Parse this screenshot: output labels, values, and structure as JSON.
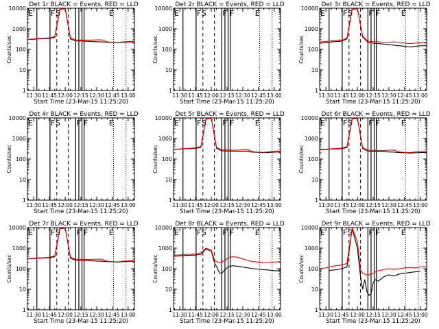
{
  "chart_data": {
    "type": "line",
    "y_scale": "log",
    "ylim": [
      1,
      10000
    ],
    "x_tick_labels": [
      "11:30",
      "11:45",
      "12:00",
      "12:15",
      "12:30",
      "12:45",
      "13:00"
    ],
    "x_tick_minutes": [
      0,
      15,
      30,
      45,
      60,
      75,
      90
    ],
    "xlim_minutes": [
      -6,
      96
    ],
    "y_tick_labels": [
      "1",
      "10",
      "100",
      "1000",
      "10000"
    ],
    "ylabel": "Counts/sec",
    "xlabel": "Start Time (23-Mar-15 11:25:20)",
    "colors": {
      "events": "#000000",
      "lld": "#ff0000"
    },
    "panels": [
      {
        "title": "Det 1r BLACK = Events, RED = LLD",
        "flags": [
          {
            "text": "E",
            "t": -6
          },
          {
            "text": "F",
            "t": 15.5
          },
          {
            "text": "S",
            "t": 20
          },
          {
            "text": "E",
            "t": 71
          }
        ],
        "solid_lines": [
          3,
          15.5,
          40,
          43,
          46,
          48
        ],
        "dashed_lines": [
          22,
          33
        ],
        "dotted_lines": [
          76,
          88
        ],
        "events": {
          "t": [
            -6,
            0,
            3,
            6,
            10,
            15,
            20,
            25,
            30,
            35,
            40,
            45,
            50,
            55,
            60,
            65,
            70,
            75,
            80,
            85,
            90,
            96
          ],
          "y": [
            300,
            310,
            320,
            330,
            330,
            340,
            380,
            9000,
            9500,
            320,
            260,
            255,
            250,
            240,
            235,
            230,
            220,
            215,
            210,
            220,
            225,
            230
          ]
        },
        "lld": {
          "t": [
            -6,
            0,
            3,
            6,
            10,
            15,
            20,
            25,
            30,
            35,
            40,
            45,
            50,
            55,
            60,
            65,
            70,
            75,
            80,
            85,
            90,
            96
          ],
          "y": [
            310,
            320,
            330,
            340,
            345,
            360,
            420,
            10000,
            10000,
            360,
            290,
            285,
            280,
            280,
            290,
            290,
            230,
            220,
            215,
            230,
            240,
            250
          ]
        }
      },
      {
        "title": "Det 2r BLACK = Events, RED = LLD",
        "flags": [
          {
            "text": "E",
            "t": -6
          },
          {
            "text": "F",
            "t": 15.5
          },
          {
            "text": "S",
            "t": 20
          },
          {
            "text": "F",
            "t": 40
          },
          {
            "text": "F",
            "t": 47
          },
          {
            "text": "E",
            "t": 71
          }
        ],
        "solid_lines": [
          3,
          15.5,
          40,
          43,
          46,
          48
        ],
        "dashed_lines": [
          22,
          33
        ],
        "dotted_lines": [
          76,
          88
        ],
        "events": {
          "t": [],
          "y": []
        },
        "lld": {
          "t": [],
          "y": []
        }
      },
      {
        "title": "Det 3r BLACK = Events, RED = LLD",
        "flags": [
          {
            "text": "E",
            "t": -6
          },
          {
            "text": "F",
            "t": 15.5
          },
          {
            "text": "S",
            "t": 20
          },
          {
            "text": "F",
            "t": 40
          },
          {
            "text": "F",
            "t": 47
          },
          {
            "text": "E",
            "t": 71
          }
        ],
        "solid_lines": [
          3,
          15.5,
          40,
          43,
          46,
          48
        ],
        "dashed_lines": [
          22,
          33
        ],
        "dotted_lines": [
          76,
          88
        ],
        "events": {
          "t": [
            -6,
            0,
            3,
            6,
            10,
            15,
            20,
            25,
            30,
            35,
            40,
            45,
            50,
            55,
            60,
            65,
            70,
            75,
            80,
            85,
            90,
            96
          ],
          "y": [
            200,
            210,
            220,
            230,
            240,
            250,
            320,
            9000,
            9500,
            400,
            220,
            200,
            190,
            180,
            170,
            160,
            150,
            140,
            130,
            140,
            150,
            150
          ]
        },
        "lld": {
          "t": [
            -6,
            0,
            3,
            6,
            10,
            15,
            20,
            25,
            30,
            35,
            40,
            45,
            50,
            55,
            60,
            65,
            70,
            75,
            80,
            85,
            90,
            96
          ],
          "y": [
            230,
            240,
            250,
            260,
            270,
            280,
            360,
            10000,
            10000,
            440,
            250,
            240,
            230,
            220,
            220,
            230,
            220,
            200,
            190,
            200,
            210,
            220
          ]
        }
      },
      {
        "title": "Det 4r BLACK = Events, RED = LLD",
        "flags": [
          {
            "text": "E",
            "t": -6
          },
          {
            "text": "F",
            "t": 15.5
          },
          {
            "text": "S",
            "t": 20
          },
          {
            "text": "F",
            "t": 40
          },
          {
            "text": "F",
            "t": 47
          },
          {
            "text": "E",
            "t": 71
          }
        ],
        "solid_lines": [
          3,
          15.5,
          40,
          43,
          46,
          48
        ],
        "dashed_lines": [
          22,
          33
        ],
        "dotted_lines": [
          76,
          88
        ],
        "events": {
          "t": [],
          "y": []
        },
        "lld": {
          "t": [],
          "y": []
        }
      },
      {
        "title": "Det 5r BLACK = Events, RED = LLD",
        "flags": [
          {
            "text": "E",
            "t": -6
          },
          {
            "text": "F",
            "t": 15.5
          },
          {
            "text": "S",
            "t": 20
          },
          {
            "text": "F",
            "t": 40
          },
          {
            "text": "F",
            "t": 47
          },
          {
            "text": "E",
            "t": 71
          }
        ],
        "solid_lines": [
          3,
          15.5,
          40,
          43,
          46,
          48
        ],
        "dashed_lines": [
          22,
          33
        ],
        "dotted_lines": [
          76,
          88
        ],
        "events": {
          "t": [
            -6,
            0,
            3,
            6,
            10,
            15,
            20,
            25,
            30,
            35,
            40,
            45,
            50,
            55,
            60,
            65,
            70,
            75,
            80,
            85,
            90,
            96
          ],
          "y": [
            290,
            300,
            310,
            320,
            320,
            330,
            370,
            9000,
            9500,
            330,
            250,
            245,
            240,
            235,
            230,
            225,
            215,
            210,
            205,
            210,
            215,
            220
          ]
        },
        "lld": {
          "t": [
            -6,
            0,
            3,
            6,
            10,
            15,
            20,
            25,
            30,
            35,
            40,
            45,
            50,
            55,
            60,
            65,
            70,
            75,
            80,
            85,
            90,
            96
          ],
          "y": [
            300,
            310,
            320,
            330,
            335,
            350,
            410,
            10000,
            10000,
            370,
            280,
            275,
            270,
            270,
            280,
            280,
            225,
            215,
            210,
            225,
            235,
            245
          ]
        }
      },
      {
        "title": "Det 6r BLACK = Events, RED = LLD",
        "flags": [
          {
            "text": "E",
            "t": -6
          },
          {
            "text": "F",
            "t": 15.5
          },
          {
            "text": "S",
            "t": 20
          },
          {
            "text": "F",
            "t": 40
          },
          {
            "text": "F",
            "t": 47
          },
          {
            "text": "E",
            "t": 71
          }
        ],
        "solid_lines": [
          3,
          15.5,
          40,
          43,
          46,
          48
        ],
        "dashed_lines": [
          22,
          33
        ],
        "dotted_lines": [
          76,
          88
        ],
        "events": {
          "t": [
            -6,
            0,
            3,
            6,
            10,
            15,
            20,
            25,
            30,
            35,
            40,
            45,
            50,
            55,
            60,
            65,
            70,
            75,
            80,
            85,
            90,
            96
          ],
          "y": [
            280,
            290,
            300,
            310,
            310,
            320,
            360,
            9000,
            9500,
            320,
            240,
            235,
            230,
            225,
            220,
            215,
            205,
            200,
            195,
            200,
            205,
            210
          ]
        },
        "lld": {
          "t": [
            -6,
            0,
            3,
            6,
            10,
            15,
            20,
            25,
            30,
            35,
            40,
            45,
            50,
            55,
            60,
            65,
            70,
            75,
            80,
            85,
            90,
            96
          ],
          "y": [
            290,
            300,
            310,
            320,
            325,
            340,
            400,
            10000,
            10000,
            360,
            270,
            265,
            260,
            260,
            270,
            270,
            220,
            210,
            205,
            220,
            230,
            240
          ]
        }
      },
      {
        "title": "Det 7r BLACK = Events, RED = LLD",
        "flags": [
          {
            "text": "E",
            "t": -6
          },
          {
            "text": "F",
            "t": 15.5
          },
          {
            "text": "S",
            "t": 20
          },
          {
            "text": "F",
            "t": 40
          },
          {
            "text": "F",
            "t": 47
          },
          {
            "text": "E",
            "t": 71
          }
        ],
        "solid_lines": [
          3,
          15.5,
          40,
          43,
          46,
          48
        ],
        "dashed_lines": [
          22,
          33
        ],
        "dotted_lines": [
          76,
          88
        ],
        "events": {
          "t": [
            -6,
            0,
            3,
            6,
            10,
            15,
            20,
            25,
            30,
            35,
            40,
            45,
            50,
            55,
            60,
            65,
            70,
            75,
            80,
            85,
            90,
            96
          ],
          "y": [
            300,
            310,
            320,
            330,
            330,
            340,
            380,
            9000,
            9500,
            320,
            260,
            255,
            250,
            240,
            235,
            230,
            220,
            215,
            210,
            220,
            225,
            230
          ]
        },
        "lld": {
          "t": [
            -6,
            0,
            3,
            6,
            10,
            15,
            20,
            25,
            30,
            35,
            40,
            45,
            50,
            55,
            60,
            65,
            70,
            75,
            80,
            85,
            90,
            96
          ],
          "y": [
            310,
            320,
            330,
            340,
            345,
            360,
            420,
            10000,
            10000,
            360,
            290,
            285,
            280,
            280,
            290,
            290,
            230,
            220,
            215,
            230,
            240,
            250
          ]
        }
      },
      {
        "title": "Det 8r BLACK = Events, RED = LLD",
        "flags": [
          {
            "text": "E",
            "t": -6
          },
          {
            "text": "F",
            "t": 15.5
          },
          {
            "text": "S",
            "t": 20
          },
          {
            "text": "F",
            "t": 40
          },
          {
            "text": "F",
            "t": 47
          },
          {
            "text": "E",
            "t": 71
          }
        ],
        "solid_lines": [
          3,
          15.5,
          40,
          43,
          46,
          48
        ],
        "dashed_lines": [
          22,
          33
        ],
        "dotted_lines": [
          76,
          88
        ],
        "events": {
          "t": [
            -6,
            0,
            3,
            6,
            10,
            15,
            20,
            25,
            30,
            33,
            36,
            38,
            40,
            43,
            46,
            50,
            55,
            60,
            65,
            70,
            75,
            80,
            85,
            90,
            96
          ],
          "y": [
            400,
            420,
            430,
            440,
            450,
            460,
            500,
            900,
            700,
            200,
            100,
            60,
            60,
            90,
            120,
            140,
            130,
            120,
            110,
            100,
            95,
            90,
            85,
            80,
            80
          ]
        },
        "lld": {
          "t": [
            -6,
            0,
            3,
            6,
            10,
            15,
            20,
            25,
            30,
            33,
            36,
            38,
            40,
            43,
            46,
            50,
            55,
            60,
            65,
            70,
            75,
            80,
            85,
            90,
            96
          ],
          "y": [
            450,
            470,
            480,
            490,
            500,
            520,
            600,
            1000,
            800,
            260,
            210,
            200,
            210,
            260,
            330,
            380,
            360,
            300,
            250,
            220,
            210,
            200,
            200,
            210,
            220
          ]
        }
      },
      {
        "title": "Det 9r BLACK = Events, RED = LLD",
        "flags": [
          {
            "text": "E",
            "t": -6
          },
          {
            "text": "F",
            "t": 15.5
          },
          {
            "text": "S",
            "t": 20
          },
          {
            "text": "F",
            "t": 40
          },
          {
            "text": "F",
            "t": 47
          },
          {
            "text": "E",
            "t": 71
          }
        ],
        "solid_lines": [
          3,
          15.5,
          40,
          43,
          46,
          48
        ],
        "dashed_lines": [
          22,
          33
        ],
        "dotted_lines": [
          76,
          88
        ],
        "events": {
          "t": [
            3,
            6,
            10,
            15,
            20,
            25,
            30,
            33,
            35,
            37,
            39,
            41,
            43,
            45,
            47,
            50,
            55,
            60,
            65,
            70,
            75,
            80,
            85,
            90
          ],
          "y": [
            80,
            85,
            90,
            100,
            120,
            9000,
            1000,
            40,
            10,
            30,
            8,
            5,
            6,
            20,
            30,
            25,
            40,
            50,
            45,
            55,
            60,
            65,
            70,
            75
          ]
        },
        "lld": {
          "t": [
            -6,
            0,
            3,
            6,
            10,
            15,
            20,
            25,
            30,
            33,
            35,
            37,
            39,
            41,
            43,
            45,
            47,
            50,
            55,
            60,
            65,
            70,
            75,
            80,
            85,
            90,
            96
          ],
          "y": [
            100,
            110,
            120,
            130,
            140,
            150,
            180,
            10000,
            2000,
            90,
            60,
            55,
            50,
            50,
            55,
            60,
            70,
            80,
            90,
            100,
            95,
            100,
            110,
            115,
            110,
            120,
            130
          ]
        }
      }
    ]
  }
}
